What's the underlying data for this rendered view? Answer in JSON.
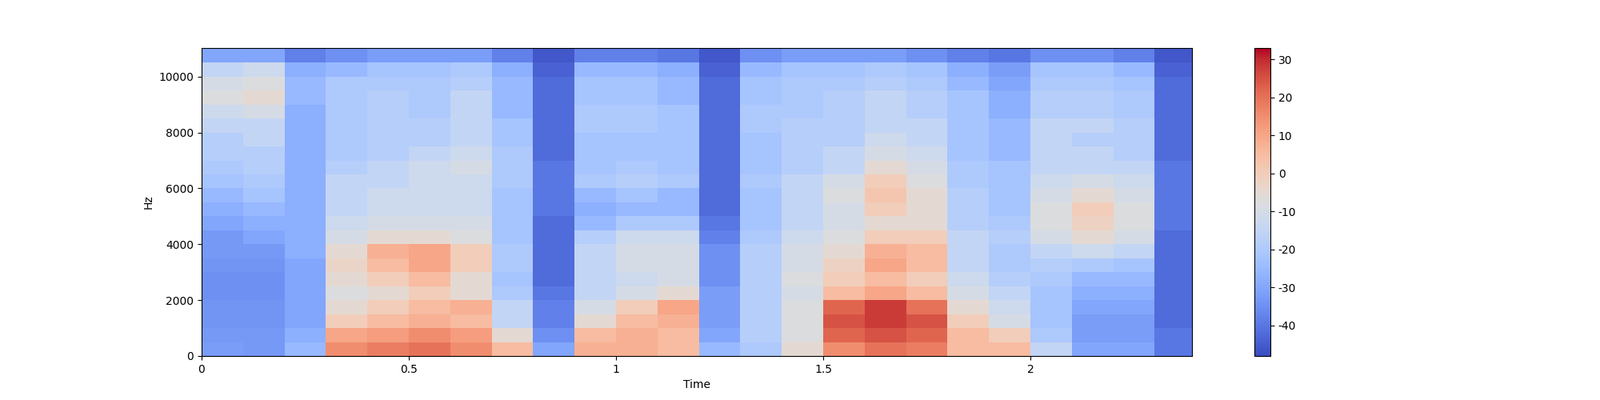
{
  "chart_data": {
    "type": "heatmap",
    "x_label": "Time",
    "y_label": "Hz",
    "xlim": [
      0,
      2.39
    ],
    "xticks": [
      0,
      0.5,
      1,
      1.5,
      2
    ],
    "ylim": [
      0,
      11025
    ],
    "yticks": [
      0,
      2000,
      4000,
      6000,
      8000,
      10000
    ],
    "x_edges": [
      0,
      0.1,
      0.2,
      0.3,
      0.4,
      0.5,
      0.6,
      0.7,
      0.8,
      0.9,
      1.0,
      1.1,
      1.2,
      1.3,
      1.4,
      1.5,
      1.6,
      1.7,
      1.8,
      1.9,
      2.0,
      2.1,
      2.2,
      2.3,
      2.4
    ],
    "y_edges": [
      0,
      500,
      1000,
      1500,
      2000,
      2500,
      3000,
      3500,
      4000,
      4500,
      5000,
      5500,
      6000,
      6500,
      7000,
      7500,
      8000,
      8500,
      9000,
      9500,
      10000,
      10500,
      11025
    ],
    "cells": [
      [
        -32,
        -33,
        -25,
        15,
        18,
        20,
        15,
        5,
        -30,
        8,
        8,
        5,
        -25,
        -20,
        -5,
        15,
        20,
        18,
        5,
        5,
        -15,
        -30,
        -30,
        -40
      ],
      [
        -33,
        -33,
        -28,
        10,
        12,
        15,
        12,
        -5,
        -35,
        5,
        8,
        5,
        -30,
        -18,
        -8,
        22,
        25,
        22,
        5,
        0,
        -20,
        -32,
        -32,
        -40
      ],
      [
        -34,
        -34,
        -30,
        0,
        5,
        8,
        5,
        -15,
        -38,
        -5,
        5,
        8,
        -32,
        -18,
        -8,
        25,
        28,
        25,
        0,
        -10,
        -22,
        -32,
        -32,
        -42
      ],
      [
        -34,
        -34,
        -30,
        -5,
        0,
        5,
        8,
        -15,
        -38,
        -10,
        0,
        10,
        -32,
        -18,
        -8,
        22,
        28,
        20,
        -5,
        -12,
        -22,
        -30,
        -30,
        -42
      ],
      [
        -35,
        -35,
        -30,
        -8,
        -5,
        0,
        -5,
        -20,
        -40,
        -15,
        -10,
        -5,
        -32,
        -18,
        -10,
        5,
        10,
        5,
        -10,
        -15,
        -22,
        -28,
        -28,
        -42
      ],
      [
        -35,
        -35,
        -30,
        -5,
        0,
        5,
        -5,
        -22,
        -42,
        -15,
        -12,
        -10,
        -35,
        -18,
        -8,
        0,
        5,
        0,
        -12,
        -18,
        -20,
        -25,
        -25,
        -42
      ],
      [
        -34,
        -34,
        -30,
        -3,
        5,
        10,
        0,
        -20,
        -42,
        -15,
        -10,
        -10,
        -35,
        -18,
        -10,
        -2,
        10,
        5,
        -15,
        -20,
        -18,
        -20,
        -22,
        -42
      ],
      [
        -33,
        -33,
        -28,
        -5,
        8,
        10,
        0,
        -20,
        -42,
        -15,
        -10,
        -10,
        -35,
        -18,
        -10,
        -5,
        8,
        5,
        -15,
        -20,
        -15,
        -12,
        -15,
        -42
      ],
      [
        -33,
        -30,
        -28,
        -10,
        -5,
        -5,
        -8,
        -22,
        -42,
        -18,
        -12,
        -12,
        -38,
        -20,
        -12,
        -8,
        0,
        0,
        -15,
        -18,
        -10,
        -5,
        -10,
        -42
      ],
      [
        -30,
        -28,
        -28,
        -12,
        -10,
        -10,
        -10,
        -22,
        -42,
        -25,
        -20,
        -20,
        -40,
        -22,
        -15,
        -10,
        -5,
        -5,
        -18,
        -20,
        -8,
        -2,
        -8,
        -40
      ],
      [
        -28,
        -25,
        -28,
        -15,
        -12,
        -12,
        -12,
        -22,
        -40,
        -28,
        -25,
        -25,
        -42,
        -22,
        -15,
        -10,
        0,
        -5,
        -18,
        -22,
        -8,
        0,
        -8,
        -40
      ],
      [
        -25,
        -22,
        -28,
        -15,
        -12,
        -12,
        -12,
        -22,
        -40,
        -25,
        -22,
        -25,
        -42,
        -22,
        -15,
        -8,
        2,
        -5,
        -18,
        -22,
        -10,
        -5,
        -10,
        -40
      ],
      [
        -22,
        -20,
        -28,
        -15,
        -15,
        -12,
        -12,
        -20,
        -40,
        -20,
        -18,
        -20,
        -42,
        -20,
        -15,
        -10,
        0,
        -8,
        -20,
        -22,
        -12,
        -10,
        -12,
        -40
      ],
      [
        -20,
        -18,
        -28,
        -18,
        -15,
        -12,
        -10,
        -20,
        -40,
        -22,
        -20,
        -22,
        -42,
        -22,
        -18,
        -15,
        -5,
        -10,
        -20,
        -22,
        -15,
        -15,
        -15,
        -40
      ],
      [
        -18,
        -18,
        -28,
        -20,
        -18,
        -15,
        -12,
        -20,
        -42,
        -22,
        -22,
        -22,
        -42,
        -22,
        -18,
        -15,
        -10,
        -12,
        -22,
        -25,
        -15,
        -15,
        -18,
        -42
      ],
      [
        -18,
        -15,
        -28,
        -20,
        -18,
        -18,
        -15,
        -22,
        -42,
        -22,
        -22,
        -22,
        -42,
        -22,
        -18,
        -18,
        -12,
        -15,
        -22,
        -25,
        -15,
        -18,
        -18,
        -42
      ],
      [
        -15,
        -15,
        -28,
        -20,
        -18,
        -18,
        -15,
        -22,
        -42,
        -20,
        -20,
        -22,
        -42,
        -20,
        -18,
        -18,
        -15,
        -15,
        -22,
        -25,
        -15,
        -15,
        -18,
        -42
      ],
      [
        -12,
        -10,
        -28,
        -20,
        -18,
        -20,
        -15,
        -25,
        -42,
        -20,
        -20,
        -22,
        -42,
        -20,
        -20,
        -18,
        -15,
        -18,
        -22,
        -28,
        -18,
        -18,
        -20,
        -42
      ],
      [
        -8,
        -5,
        -25,
        -20,
        -18,
        -20,
        -15,
        -25,
        -42,
        -22,
        -22,
        -25,
        -42,
        -22,
        -20,
        -18,
        -15,
        -18,
        -22,
        -28,
        -18,
        -18,
        -20,
        -42
      ],
      [
        -10,
        -8,
        -25,
        -20,
        -20,
        -20,
        -18,
        -25,
        -42,
        -22,
        -22,
        -25,
        -42,
        -22,
        -20,
        -20,
        -18,
        -20,
        -25,
        -30,
        -20,
        -20,
        -22,
        -42
      ],
      [
        -15,
        -12,
        -28,
        -25,
        -22,
        -22,
        -20,
        -28,
        -44,
        -25,
        -25,
        -28,
        -44,
        -25,
        -22,
        -22,
        -20,
        -22,
        -28,
        -32,
        -22,
        -22,
        -25,
        -44
      ],
      [
        -30,
        -30,
        -38,
        -35,
        -32,
        -32,
        -32,
        -38,
        -46,
        -38,
        -38,
        -40,
        -46,
        -35,
        -32,
        -32,
        -32,
        -35,
        -38,
        -40,
        -35,
        -35,
        -38,
        -46
      ]
    ],
    "colorbar": {
      "range": [
        -48,
        33
      ],
      "ticks": [
        -40,
        -30,
        -20,
        -10,
        0,
        10,
        20,
        30
      ]
    }
  }
}
